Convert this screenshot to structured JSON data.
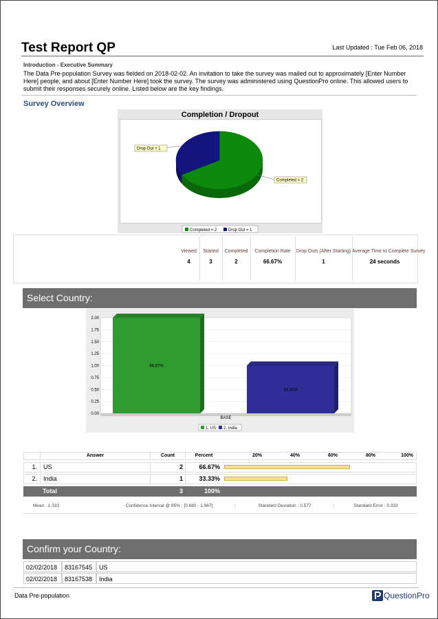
{
  "header": {
    "title": "Test Report QP",
    "updated": "Last Updated : Tue Feb 06, 2018"
  },
  "intro": {
    "heading": "Introduction - Executive Summary",
    "text": "The Data Pre-population Survey was fielded on 2018-02-02. An invitation to take the survey was mailed out to approximately [Enter Number Here] people, and about [Enter Number Here] took the survey. The survey was administered using QuestionPro online. This allowed users to submit their responses securely online. Listed below are the key findings."
  },
  "overview": {
    "heading": "Survey Overview",
    "pie": {
      "title": "Completion / Dropout",
      "slices": [
        {
          "label": "Completed = 2",
          "value": 2,
          "color": "#0b8a0b"
        },
        {
          "label": "Drop Out = 1",
          "value": 1,
          "color": "#14147e"
        }
      ]
    },
    "stats": {
      "headers": [
        "Viewed",
        "Started",
        "Completed",
        "Completion Rate",
        "Drop Outs (After Starting)",
        "Average Time to Complete Survey"
      ],
      "values": [
        4,
        3,
        2,
        "66.67%",
        1,
        "24 seconds"
      ]
    }
  },
  "country": {
    "heading": "Select Country:",
    "chart": {
      "categories": [
        "BASE"
      ],
      "series": [
        {
          "name": "1. US",
          "color": "#2f9a2f",
          "values": [
            2
          ],
          "value_labels": [
            "66.67%"
          ]
        },
        {
          "name": "2. India",
          "color": "#2e2e96",
          "values": [
            1
          ],
          "value_labels": [
            "33.33%"
          ]
        }
      ],
      "ylim": [
        0,
        2
      ],
      "yticks": [
        {
          "value": 0,
          "label": "0.00"
        },
        {
          "value": 0.25,
          "label": "0.25"
        },
        {
          "value": 0.5,
          "label": "0.50"
        },
        {
          "value": 0.75,
          "label": "0.75"
        },
        {
          "value": 1,
          "label": "1.00"
        },
        {
          "value": 1.25,
          "label": "1.25"
        },
        {
          "value": 1.5,
          "label": "1.50"
        },
        {
          "value": 1.75,
          "label": "1.75"
        },
        {
          "value": 2,
          "label": "2.00"
        }
      ]
    },
    "table": {
      "columns": [
        "Answer",
        "Count",
        "Percent"
      ],
      "scale": [
        {
          "value": 20,
          "label": "20%"
        },
        {
          "value": 40,
          "label": "40%"
        },
        {
          "value": 60,
          "label": "60%"
        },
        {
          "value": 80,
          "label": "80%"
        },
        {
          "value": 100,
          "label": "100%"
        }
      ],
      "rows": [
        {
          "num": "1.",
          "answer": "US",
          "count": 2,
          "percent": {
            "value": 66.67,
            "label": "66.67%"
          }
        },
        {
          "num": "2.",
          "answer": "India",
          "count": 1,
          "percent": {
            "value": 33.33,
            "label": "33.33%"
          }
        }
      ],
      "total": {
        "label": "Total",
        "count": 3,
        "percent": "100%"
      },
      "stats": [
        "Mean : 1.333",
        "Confidence Interval @ 95% : [0.680 - 1.987]",
        "Standard Deviation : 0.577",
        "Standard Error : 0.333"
      ]
    }
  },
  "confirm": {
    "heading": "Confirm your Country:",
    "rows": [
      [
        "02/02/2018",
        "83167545",
        "US"
      ],
      [
        "02/02/2018",
        "83167538",
        "India"
      ]
    ]
  },
  "footer": {
    "left": "Data Pre-population",
    "brand": "QuestionPro"
  }
}
